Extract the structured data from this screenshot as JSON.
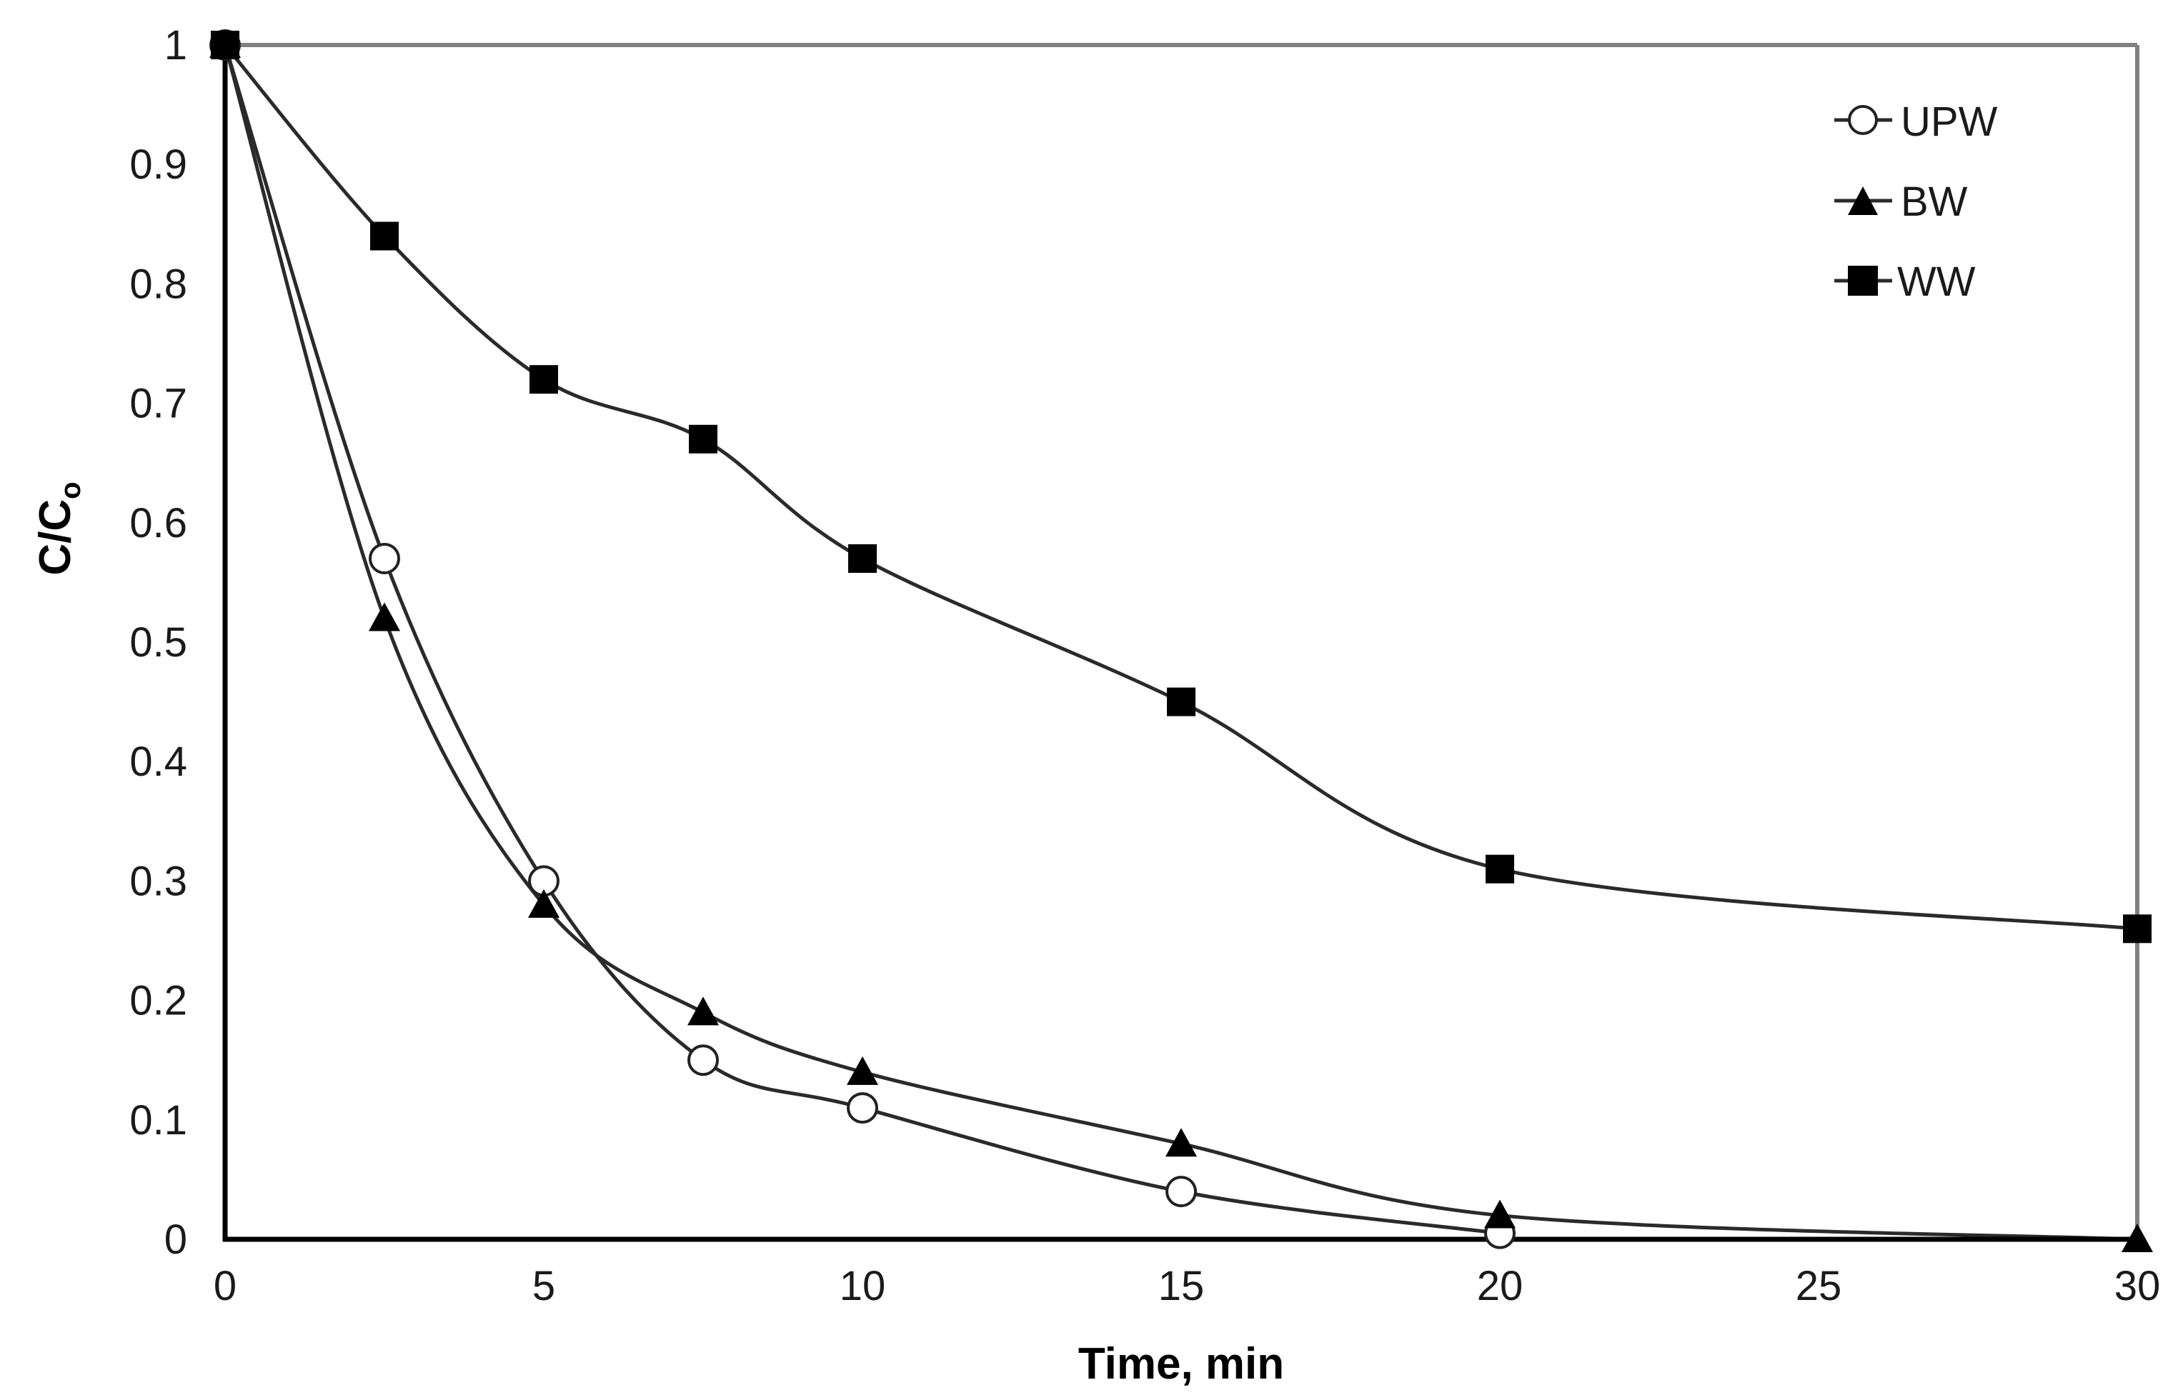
{
  "chart_data": {
    "type": "line",
    "title": "",
    "xlabel": "Time, min",
    "ylabel": "C/C₀",
    "ylabel_main": "C/C",
    "ylabel_sub": "o",
    "xlim": [
      0,
      30
    ],
    "ylim": [
      0,
      1
    ],
    "x_ticks": [
      0,
      5,
      10,
      15,
      20,
      25,
      30
    ],
    "x_tick_labels": [
      "0",
      "5",
      "10",
      "15",
      "20",
      "25",
      "30"
    ],
    "y_ticks": [
      0,
      0.1,
      0.2,
      0.3,
      0.4,
      0.5,
      0.6,
      0.7,
      0.8,
      0.9,
      1
    ],
    "y_tick_labels": [
      "0",
      "0.1",
      "0.2",
      "0.3",
      "0.4",
      "0.5",
      "0.6",
      "0.7",
      "0.8",
      "0.9",
      "1"
    ],
    "grid": false,
    "smoothed_lines": true,
    "legend_position": "upper right (inside plot)",
    "series": [
      {
        "name": "UPW",
        "marker": "open-circle",
        "x": [
          0,
          2.5,
          5,
          7.5,
          10,
          15,
          20
        ],
        "values": [
          1.0,
          0.57,
          0.3,
          0.15,
          0.11,
          0.04,
          0.005
        ]
      },
      {
        "name": "BW",
        "marker": "filled-triangle",
        "x": [
          0,
          2.5,
          5,
          7.5,
          10,
          15,
          20,
          30
        ],
        "values": [
          1.0,
          0.52,
          0.28,
          0.19,
          0.14,
          0.08,
          0.02,
          0.0
        ]
      },
      {
        "name": "WW",
        "marker": "filled-square",
        "x": [
          0,
          2.5,
          5,
          7.5,
          10,
          15,
          20,
          30
        ],
        "values": [
          1.0,
          0.84,
          0.72,
          0.67,
          0.57,
          0.45,
          0.31,
          0.26
        ]
      }
    ]
  },
  "legend": {
    "items": [
      {
        "label": "UPW",
        "marker": "open-circle"
      },
      {
        "label": "BW",
        "marker": "filled-triangle"
      },
      {
        "label": "WW",
        "marker": "filled-square"
      }
    ]
  },
  "colors": {
    "axis_left_bottom": "#000000",
    "plot_border_top_right": "#808080",
    "series_line": "#2a2a2a",
    "marker_fill": "#000000",
    "open_marker_fill": "#ffffff",
    "background": "#ffffff"
  }
}
